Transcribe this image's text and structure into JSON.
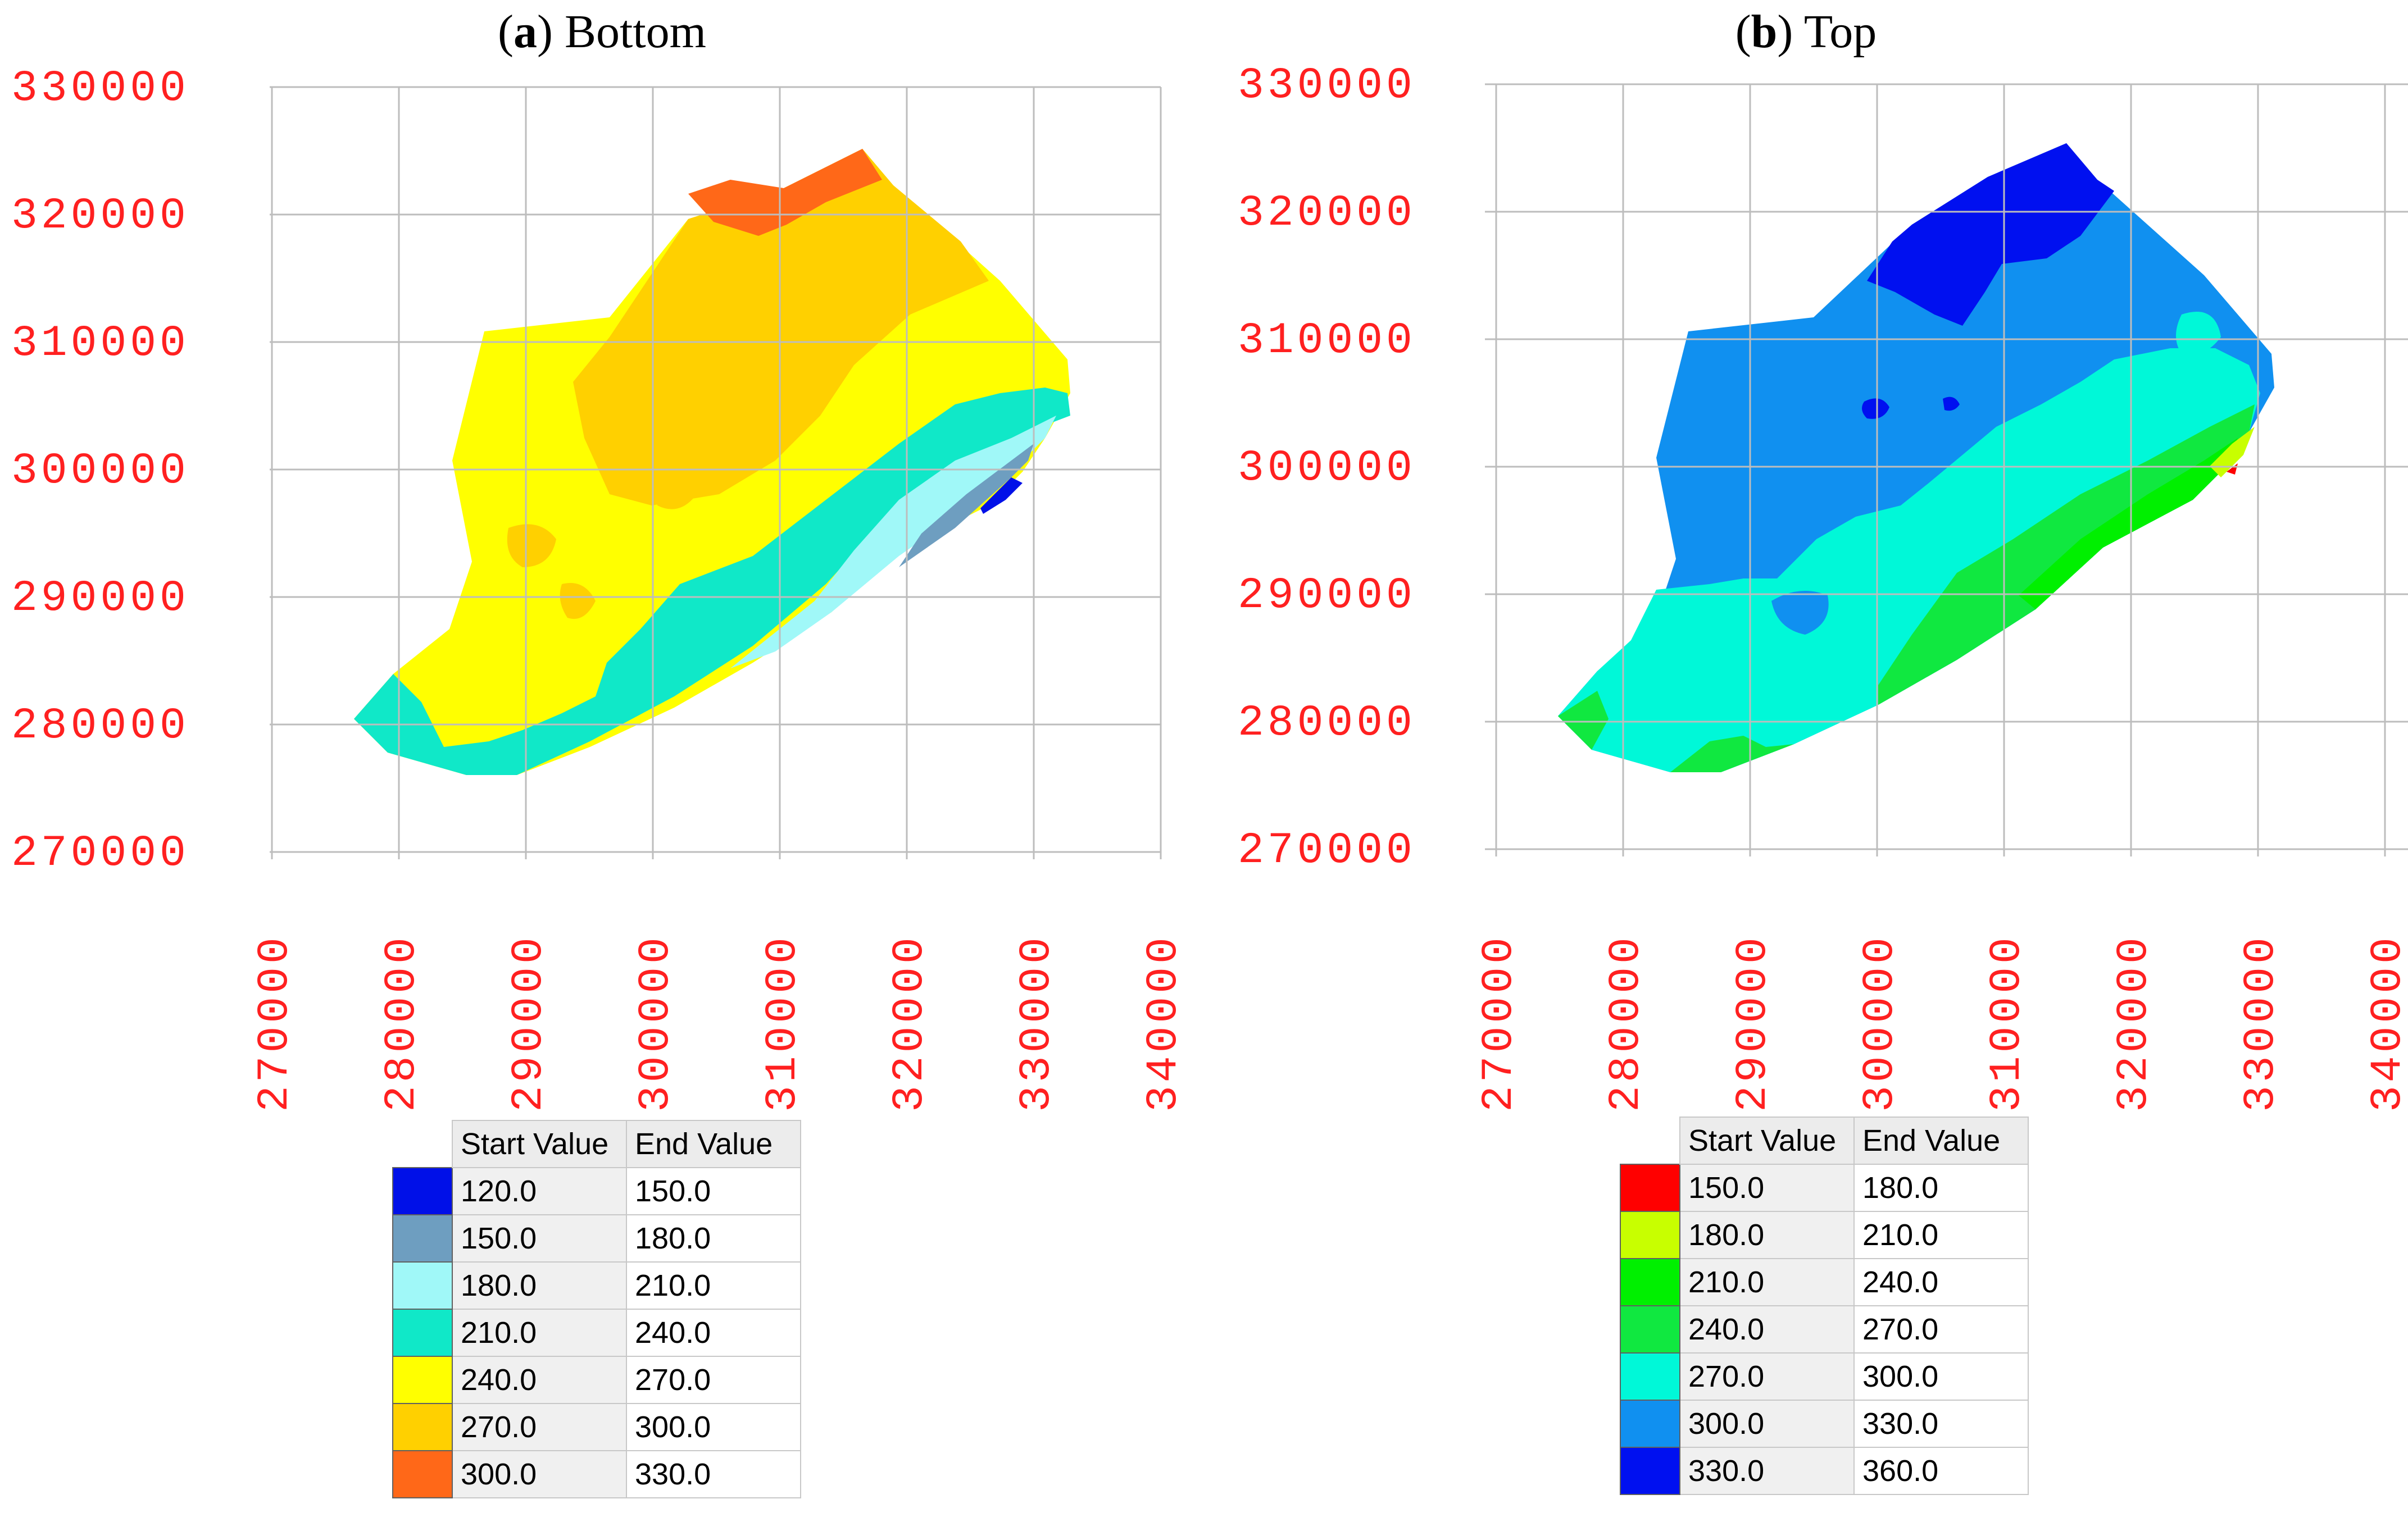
{
  "panels": [
    {
      "id": "a",
      "title_letter": "a",
      "title_text": " Bottom",
      "y_ticks": [
        "330000",
        "320000",
        "310000",
        "300000",
        "290000",
        "280000",
        "270000"
      ],
      "x_ticks": [
        "270000",
        "280000",
        "290000",
        "300000",
        "310000",
        "320000",
        "330000",
        "340000"
      ],
      "legend": {
        "header": [
          "Start Value",
          "End Value"
        ],
        "rows": [
          {
            "start": "120.0",
            "end": "150.0",
            "color": "#0010e8"
          },
          {
            "start": "150.0",
            "end": "180.0",
            "color": "#6e9ec0"
          },
          {
            "start": "180.0",
            "end": "210.0",
            "color": "#a0f8f8"
          },
          {
            "start": "210.0",
            "end": "240.0",
            "color": "#10e8c8"
          },
          {
            "start": "240.0",
            "end": "270.0",
            "color": "#ffff00"
          },
          {
            "start": "270.0",
            "end": "300.0",
            "color": "#ffd000"
          },
          {
            "start": "300.0",
            "end": "330.0",
            "color": "#ff6818"
          }
        ]
      }
    },
    {
      "id": "b",
      "title_letter": "b",
      "title_text": " Top",
      "y_ticks": [
        "330000",
        "320000",
        "310000",
        "300000",
        "290000",
        "280000",
        "270000"
      ],
      "x_ticks": [
        "270000",
        "280000",
        "290000",
        "300000",
        "310000",
        "320000",
        "330000",
        "340000"
      ],
      "legend": {
        "header": [
          "Start Value",
          "End Value"
        ],
        "rows": [
          {
            "start": "150.0",
            "end": "180.0",
            "color": "#ff0000"
          },
          {
            "start": "180.0",
            "end": "210.0",
            "color": "#c8ff00"
          },
          {
            "start": "210.0",
            "end": "240.0",
            "color": "#00f000"
          },
          {
            "start": "240.0",
            "end": "270.0",
            "color": "#10e840"
          },
          {
            "start": "270.0",
            "end": "300.0",
            "color": "#00f8d8"
          },
          {
            "start": "300.0",
            "end": "330.0",
            "color": "#1090f0"
          },
          {
            "start": "330.0",
            "end": "360.0",
            "color": "#0010f0"
          }
        ]
      }
    }
  ]
}
